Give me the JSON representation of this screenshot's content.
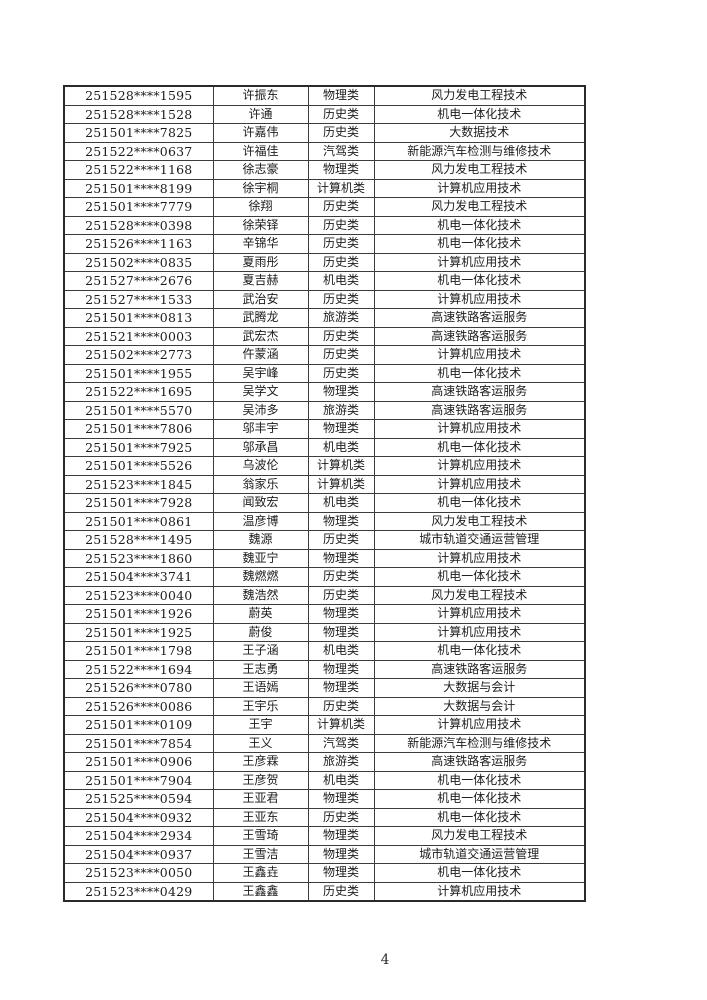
{
  "page": {
    "number": "4",
    "background_color": "#ffffff",
    "text_color": "#1c1c1c",
    "border_color": "#3c3c3c"
  },
  "table": {
    "rows": [
      {
        "id": "251528****1595",
        "name": "许振东",
        "category": "物理类",
        "major": "风力发电工程技术"
      },
      {
        "id": "251528****1528",
        "name": "许通",
        "category": "历史类",
        "major": "机电一体化技术"
      },
      {
        "id": "251501****7825",
        "name": "许嘉伟",
        "category": "历史类",
        "major": "大数据技术"
      },
      {
        "id": "251522****0637",
        "name": "许福佳",
        "category": "汽驾类",
        "major": "新能源汽车检测与维修技术"
      },
      {
        "id": "251522****1168",
        "name": "徐志豪",
        "category": "物理类",
        "major": "风力发电工程技术"
      },
      {
        "id": "251501****8199",
        "name": "徐宇桐",
        "category": "计算机类",
        "major": "计算机应用技术"
      },
      {
        "id": "251501****7779",
        "name": "徐翔",
        "category": "历史类",
        "major": "风力发电工程技术"
      },
      {
        "id": "251528****0398",
        "name": "徐荣铎",
        "category": "历史类",
        "major": "机电一体化技术"
      },
      {
        "id": "251526****1163",
        "name": "辛锦华",
        "category": "历史类",
        "major": "机电一体化技术"
      },
      {
        "id": "251502****0835",
        "name": "夏雨彤",
        "category": "历史类",
        "major": "计算机应用技术"
      },
      {
        "id": "251527****2676",
        "name": "夏吉赫",
        "category": "机电类",
        "major": "机电一体化技术"
      },
      {
        "id": "251527****1533",
        "name": "武治安",
        "category": "历史类",
        "major": "计算机应用技术"
      },
      {
        "id": "251501****0813",
        "name": "武腾龙",
        "category": "旅游类",
        "major": "高速铁路客运服务"
      },
      {
        "id": "251521****0003",
        "name": "武宏杰",
        "category": "历史类",
        "major": "高速铁路客运服务"
      },
      {
        "id": "251502****2773",
        "name": "仵蒙涵",
        "category": "历史类",
        "major": "计算机应用技术"
      },
      {
        "id": "251501****1955",
        "name": "吴宇峰",
        "category": "历史类",
        "major": "机电一体化技术"
      },
      {
        "id": "251522****1695",
        "name": "吴学文",
        "category": "物理类",
        "major": "高速铁路客运服务"
      },
      {
        "id": "251501****5570",
        "name": "吴沛多",
        "category": "旅游类",
        "major": "高速铁路客运服务"
      },
      {
        "id": "251501****7806",
        "name": "邬丰宇",
        "category": "物理类",
        "major": "计算机应用技术"
      },
      {
        "id": "251501****7925",
        "name": "邬承昌",
        "category": "机电类",
        "major": "机电一体化技术"
      },
      {
        "id": "251501****5526",
        "name": "乌波伦",
        "category": "计算机类",
        "major": "计算机应用技术"
      },
      {
        "id": "251523****1845",
        "name": "翁家乐",
        "category": "计算机类",
        "major": "计算机应用技术"
      },
      {
        "id": "251501****7928",
        "name": "闻致宏",
        "category": "机电类",
        "major": "机电一体化技术"
      },
      {
        "id": "251501****0861",
        "name": "温彦博",
        "category": "物理类",
        "major": "风力发电工程技术"
      },
      {
        "id": "251528****1495",
        "name": "魏源",
        "category": "历史类",
        "major": "城市轨道交通运营管理"
      },
      {
        "id": "251523****1860",
        "name": "魏亚宁",
        "category": "物理类",
        "major": "计算机应用技术"
      },
      {
        "id": "251504****3741",
        "name": "魏燃燃",
        "category": "历史类",
        "major": "机电一体化技术"
      },
      {
        "id": "251523****0040",
        "name": "魏浩然",
        "category": "历史类",
        "major": "风力发电工程技术"
      },
      {
        "id": "251501****1926",
        "name": "蔚英",
        "category": "物理类",
        "major": "计算机应用技术"
      },
      {
        "id": "251501****1925",
        "name": "蔚俊",
        "category": "物理类",
        "major": "计算机应用技术"
      },
      {
        "id": "251501****1798",
        "name": "王子涵",
        "category": "机电类",
        "major": "机电一体化技术"
      },
      {
        "id": "251522****1694",
        "name": "王志勇",
        "category": "物理类",
        "major": "高速铁路客运服务"
      },
      {
        "id": "251526****0780",
        "name": "王语嫣",
        "category": "物理类",
        "major": "大数据与会计"
      },
      {
        "id": "251526****0086",
        "name": "王宇乐",
        "category": "历史类",
        "major": "大数据与会计"
      },
      {
        "id": "251501****0109",
        "name": "王宇",
        "category": "计算机类",
        "major": "计算机应用技术"
      },
      {
        "id": "251501****7854",
        "name": "王义",
        "category": "汽驾类",
        "major": "新能源汽车检测与维修技术"
      },
      {
        "id": "251501****0906",
        "name": "王彦霖",
        "category": "旅游类",
        "major": "高速铁路客运服务"
      },
      {
        "id": "251501****7904",
        "name": "王彦贺",
        "category": "机电类",
        "major": "机电一体化技术"
      },
      {
        "id": "251525****0594",
        "name": "王亚君",
        "category": "物理类",
        "major": "机电一体化技术"
      },
      {
        "id": "251504****0932",
        "name": "王亚东",
        "category": "历史类",
        "major": "机电一体化技术"
      },
      {
        "id": "251504****2934",
        "name": "王雪琦",
        "category": "物理类",
        "major": "风力发电工程技术"
      },
      {
        "id": "251504****0937",
        "name": "王雪洁",
        "category": "物理类",
        "major": "城市轨道交通运营管理"
      },
      {
        "id": "251523****0050",
        "name": "王鑫垚",
        "category": "物理类",
        "major": "机电一体化技术"
      },
      {
        "id": "251523****0429",
        "name": "王鑫鑫",
        "category": "历史类",
        "major": "计算机应用技术"
      }
    ]
  }
}
